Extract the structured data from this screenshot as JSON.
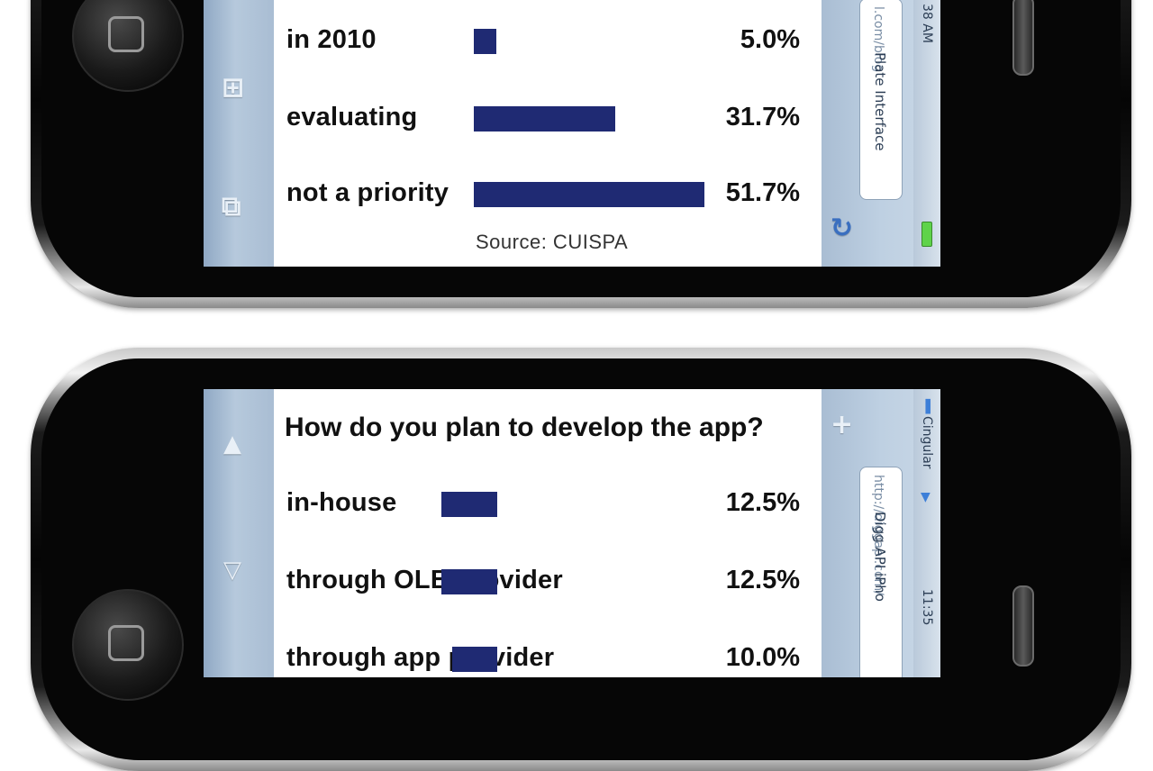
{
  "top_phone": {
    "status": {
      "time": "38 AM"
    },
    "page_title": "Plate Interface",
    "url": "l.com/blog",
    "icons": [
      "bookmarks-icon",
      "pages-icon",
      "reload-icon",
      "battery-icon"
    ]
  },
  "bottom_phone": {
    "status": {
      "carrier": "Cingular",
      "time": "11:35"
    },
    "page_title": "Digg API iPho",
    "url": "http://diggapi.com/",
    "icons": [
      "arrow-up-icon",
      "arrow-down-icon",
      "plus-icon",
      "signal-icon",
      "wifi-icon"
    ]
  },
  "colors": {
    "bar": "#1f2a73",
    "toolbar": "#b6c9dc",
    "text": "#111111"
  },
  "chart_data": [
    {
      "type": "bar",
      "orientation": "horizontal",
      "title": "",
      "categories": [
        "in 2010",
        "evaluating",
        "not a priority"
      ],
      "values": [
        5.0,
        31.7,
        51.7
      ],
      "value_labels": [
        "5.0%",
        "31.7%",
        "51.7%"
      ],
      "xlim": [
        0,
        51.7
      ],
      "source": "Source: CUISPA"
    },
    {
      "type": "bar",
      "orientation": "horizontal",
      "title": "How do you plan to develop the app?",
      "categories": [
        "in-house",
        "through OLB provider",
        "through app provider"
      ],
      "values": [
        12.5,
        12.5,
        10.0
      ],
      "value_labels": [
        "12.5%",
        "12.5%",
        "10.0%"
      ],
      "xlim": [
        0,
        51.7
      ]
    }
  ]
}
